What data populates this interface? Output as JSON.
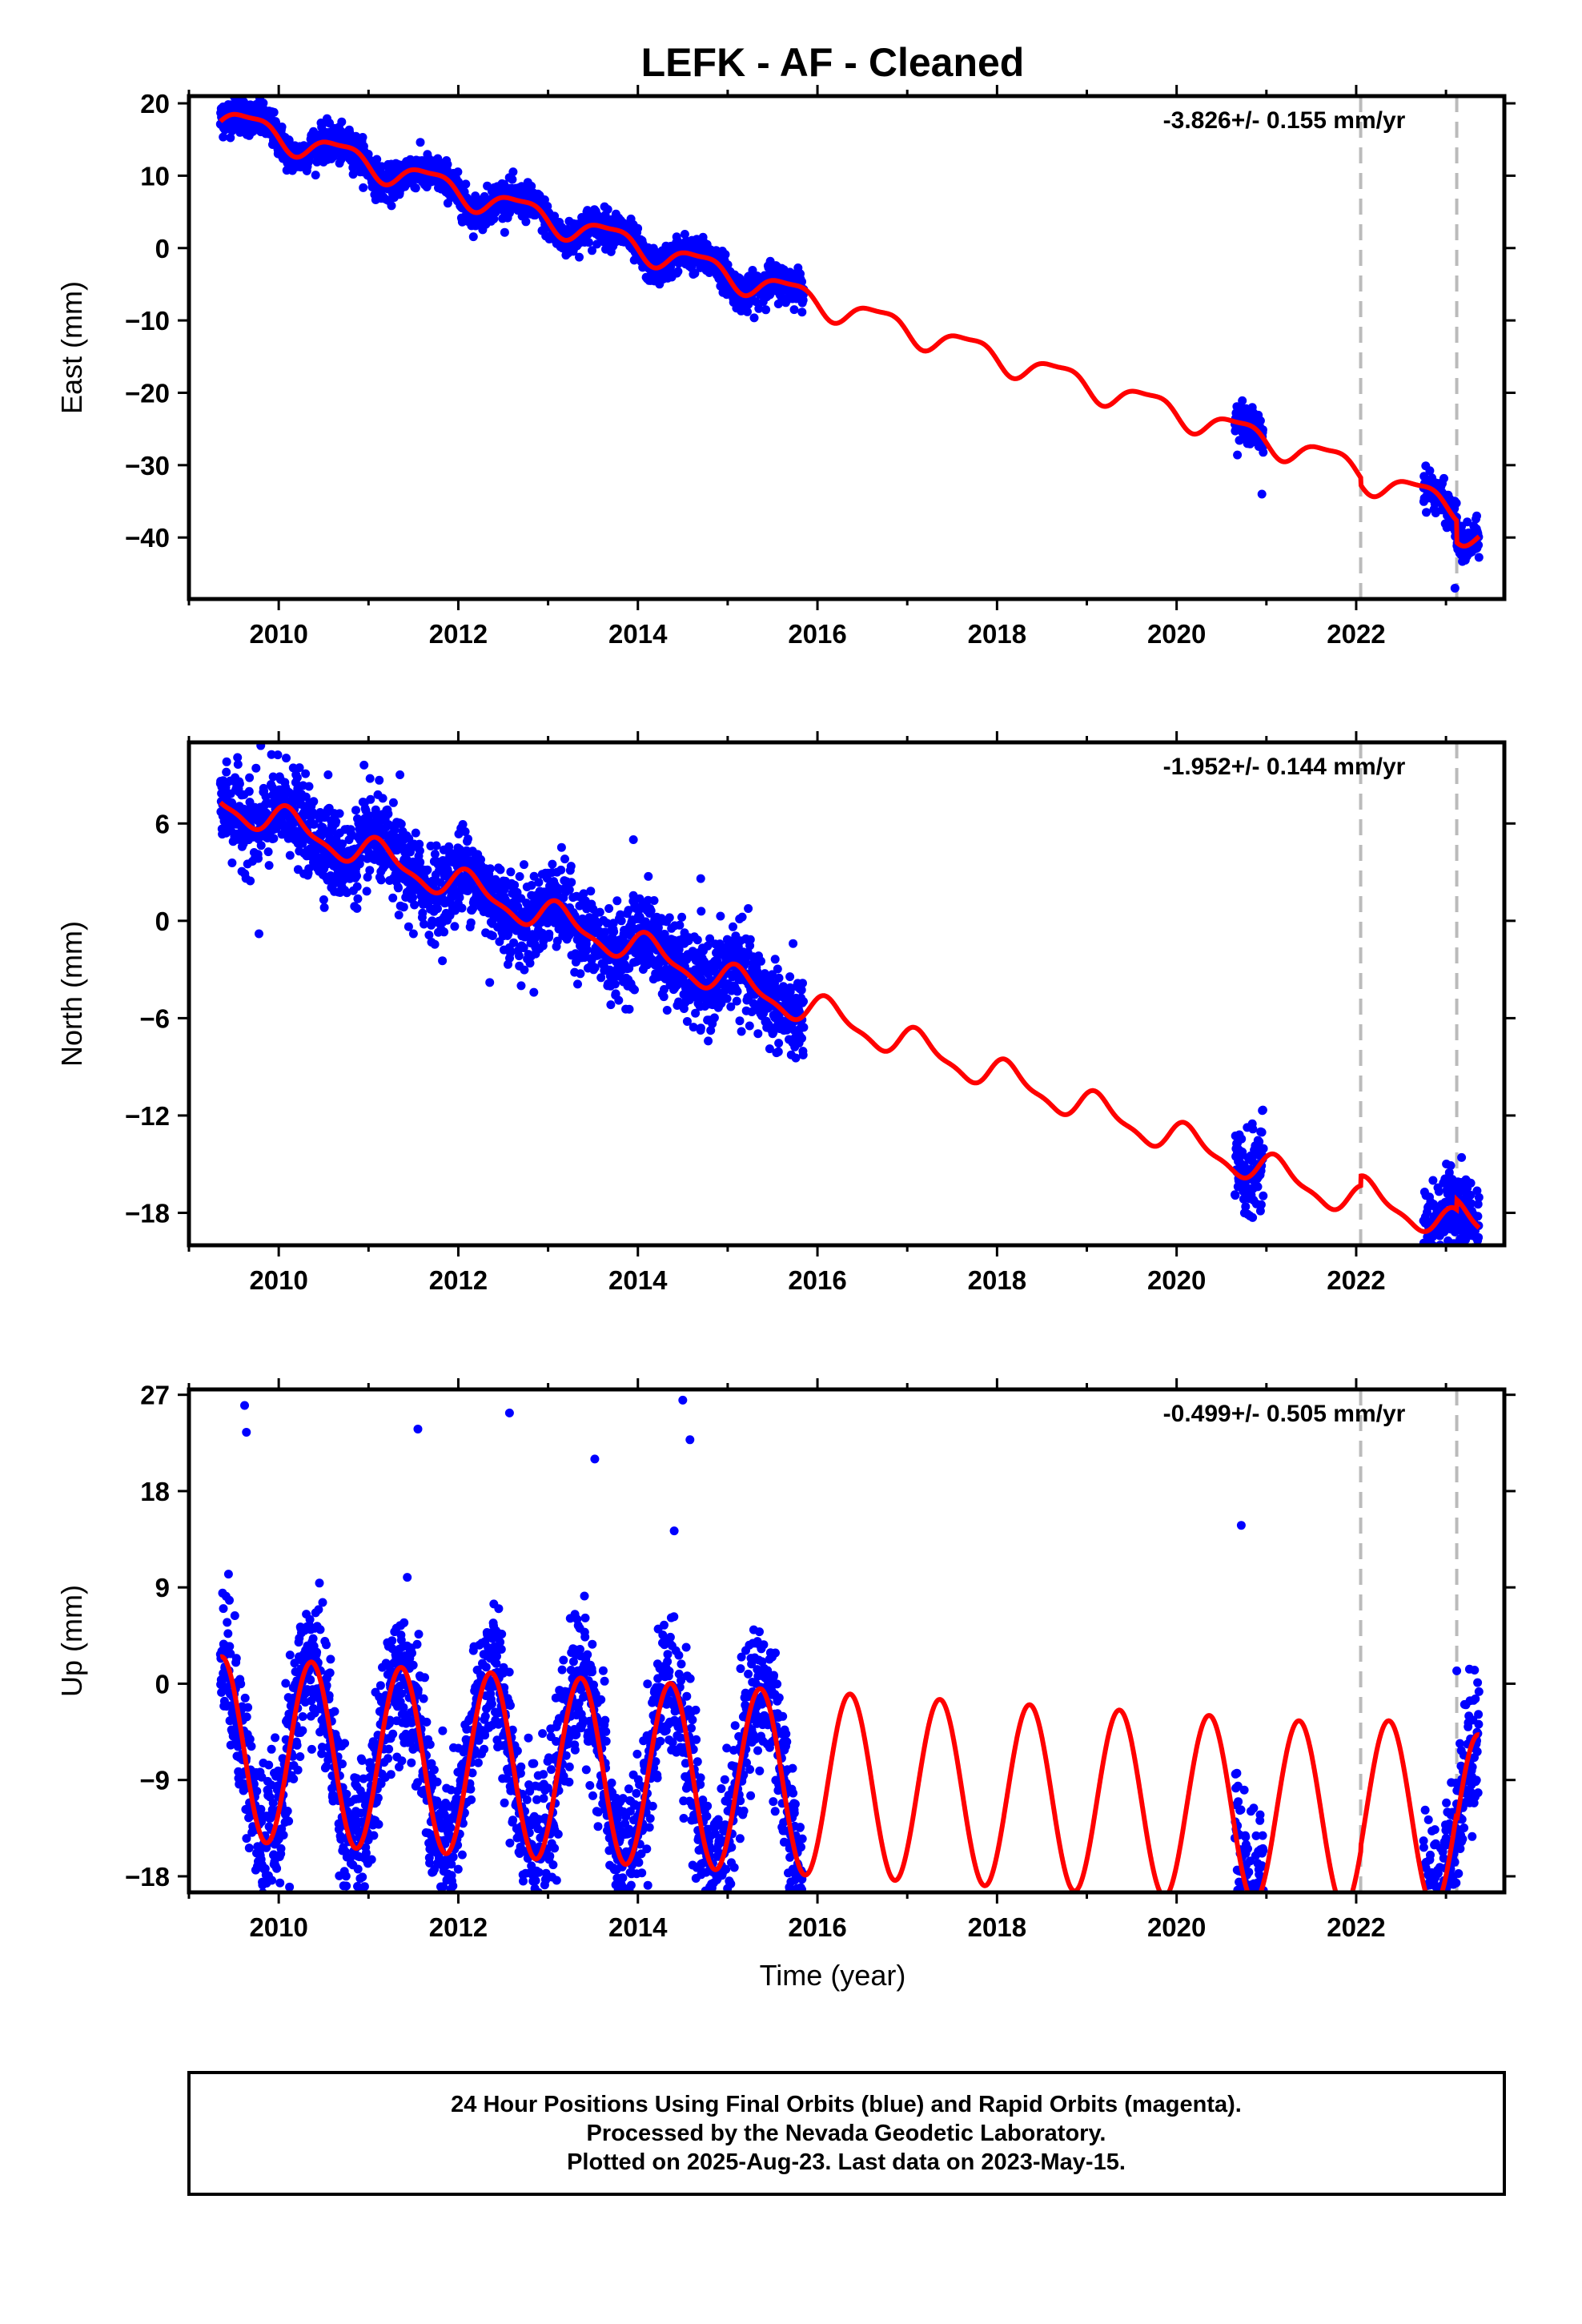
{
  "title": "LEFK  - AF - Cleaned",
  "xlabel": "Time (year)",
  "footer": {
    "line1": "24 Hour Positions Using Final Orbits (blue) and Rapid Orbits (magenta).",
    "line2": "Processed by the Nevada Geodetic Laboratory.",
    "line3": "Plotted on 2025-Aug-23. Last data on 2023-May-15."
  },
  "colors": {
    "data": "#0000ff",
    "model": "#ff0000",
    "event_lines": "#bbbbbb",
    "frame": "#000000"
  },
  "chart_data": [
    {
      "type": "scatter",
      "component": "east",
      "ylabel": "East (mm)",
      "rate_text": "-3.826+/- 0.155 mm/yr",
      "xlim": [
        2009.0,
        2023.65
      ],
      "ylim": [
        -48.5,
        21
      ],
      "xticks": [
        2010,
        2012,
        2014,
        2016,
        2018,
        2020,
        2022
      ],
      "yticks": [
        -40,
        -30,
        -20,
        -10,
        0,
        10,
        20
      ],
      "event_lines": [
        2022.05,
        2023.12
      ],
      "model": {
        "t0": 2009.35,
        "y0": 17.5,
        "rate": -3.826,
        "amp_cos": -0.7,
        "amp_sin": -1.6,
        "amp_cos2": 0.3,
        "amp_sin2": -0.45,
        "offsets": [
          {
            "t": 2022.05,
            "dy": -1.0
          },
          {
            "t": 2023.12,
            "dy": -3.0
          }
        ]
      },
      "data_segments": [
        [
          2009.35,
          2015.85
        ],
        [
          2020.65,
          2020.97
        ],
        [
          2022.75,
          2023.37
        ]
      ],
      "scatter_sd": 1.2,
      "outliers": [
        [
          2009.38,
          19.5
        ],
        [
          2023.1,
          -47.0
        ],
        [
          2020.95,
          -34.0
        ]
      ]
    },
    {
      "type": "scatter",
      "component": "north",
      "ylabel": "North (mm)",
      "rate_text": "-1.952+/- 0.144 mm/yr",
      "xlim": [
        2009.0,
        2023.65
      ],
      "ylim": [
        -20,
        11
      ],
      "xticks": [
        2010,
        2012,
        2014,
        2016,
        2018,
        2020,
        2022
      ],
      "yticks": [
        -18,
        -12,
        -6,
        0,
        6
      ],
      "event_lines": [
        2022.05,
        2023.12
      ],
      "model": {
        "t0": 2009.35,
        "y0": 7.3,
        "rate": -1.952,
        "amp_cos": 0.6,
        "amp_sin": 0.7,
        "amp_cos2": 0.25,
        "amp_sin2": 0.2,
        "offsets": [
          {
            "t": 2022.05,
            "dy": 0.6
          },
          {
            "t": 2023.12,
            "dy": 0.6
          }
        ]
      },
      "data_segments": [
        [
          2009.35,
          2015.85
        ],
        [
          2020.65,
          2020.97
        ],
        [
          2022.75,
          2023.37
        ]
      ],
      "scatter_sd": 1.3,
      "outliers": [
        [
          2009.42,
          9.8
        ],
        [
          2009.8,
          10.8
        ],
        [
          2009.78,
          -0.8
        ],
        [
          2010.55,
          9.0
        ],
        [
          2010.95,
          9.6
        ],
        [
          2011.35,
          9.0
        ],
        [
          2011.5,
          -0.8
        ],
        [
          2012.35,
          -3.8
        ],
        [
          2012.7,
          -4.0
        ],
        [
          2013.1,
          3.0
        ],
        [
          2013.95,
          5.0
        ],
        [
          2014.05,
          -0.4
        ],
        [
          2014.7,
          2.6
        ],
        [
          2014.55,
          -6.2
        ],
        [
          2023.05,
          -19.0
        ]
      ]
    },
    {
      "type": "scatter",
      "component": "up",
      "ylabel": "Up (mm)",
      "rate_text": "-0.499+/- 0.505 mm/yr",
      "xlim": [
        2009.0,
        2023.65
      ],
      "ylim": [
        -19.5,
        27.5
      ],
      "xticks": [
        2010,
        2012,
        2014,
        2016,
        2018,
        2020,
        2022
      ],
      "yticks": [
        -18,
        -9,
        0,
        9,
        18,
        27
      ],
      "event_lines": [
        2022.05,
        2023.12
      ],
      "model": {
        "t0": 2009.35,
        "y0": 2.5,
        "rate": -0.499,
        "amp_cos": -5.6,
        "amp_sin": 6.5,
        "amp_cos2": 0.0,
        "amp_sin2": 0.0,
        "offsets": [
          {
            "t": 2022.05,
            "dy": 0.5
          },
          {
            "t": 2023.12,
            "dy": -0.8
          }
        ]
      },
      "data_segments": [
        [
          2009.35,
          2015.85
        ],
        [
          2020.65,
          2020.97
        ],
        [
          2022.75,
          2023.37
        ]
      ],
      "scatter_sd": 3.4,
      "outliers": [
        [
          2009.62,
          26.0
        ],
        [
          2009.64,
          23.5
        ],
        [
          2010.12,
          -19.0
        ],
        [
          2011.55,
          23.8
        ],
        [
          2012.57,
          25.3
        ],
        [
          2013.52,
          21.0
        ],
        [
          2014.5,
          26.5
        ],
        [
          2014.58,
          22.8
        ],
        [
          2020.72,
          14.8
        ],
        [
          2020.95,
          -17.0
        ],
        [
          2023.08,
          -18.0
        ],
        [
          2023.12,
          1.2
        ]
      ]
    }
  ]
}
